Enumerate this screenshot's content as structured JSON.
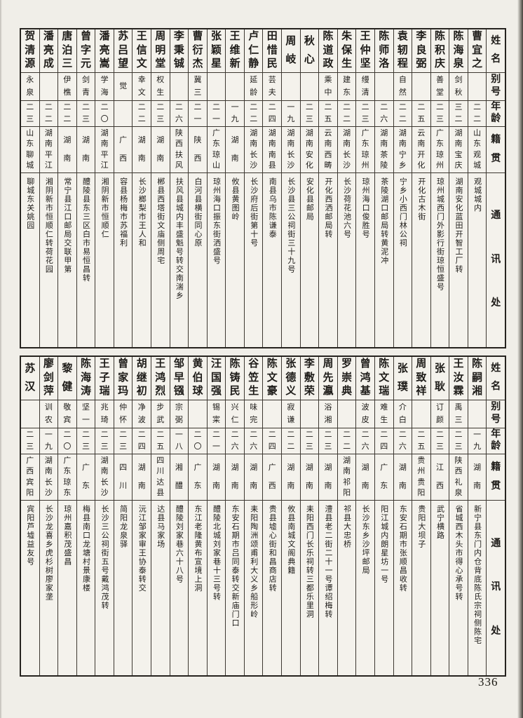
{
  "page": {
    "number": "336"
  },
  "column_headers": {
    "name": "姓名",
    "alias": "别号",
    "age": "年龄",
    "native_place": "籍贯",
    "address": "通讯处"
  },
  "tables": [
    {
      "id": "upper",
      "entries": [
        {
          "name": "曹宜之",
          "alias": "",
          "age": "二二",
          "native_place": "山东观城",
          "address": "观城城内"
        },
        {
          "name": "陈海泉",
          "alias": "剑秋",
          "age": "三二",
          "native_place": "湖南宝庆",
          "address": "湖南安化蓝田开智工厂转"
        },
        {
          "name": "陈积庆",
          "alias": "善堂",
          "age": "二三",
          "native_place": "广东琼州",
          "address": "琼州城西门外影行街琼恒盛号"
        },
        {
          "name": "李良弼",
          "alias": "",
          "age": "二五",
          "native_place": "云南开化",
          "address": "开化古木街"
        },
        {
          "name": "袁轫程",
          "alias": "自然",
          "age": "二二",
          "native_place": "湖南宁乡",
          "address": "宁乡小西门林公祠"
        },
        {
          "name": "陈师洛",
          "alias": "",
          "age": "二六",
          "native_place": "湖南茶陵",
          "address": "茶陵湖口邮局转黄泥冲"
        },
        {
          "name": "王仲坚",
          "alias": "缦清",
          "age": "二三",
          "native_place": "广东琼州",
          "address": "琼州海口俊胜号"
        },
        {
          "name": "朱保生",
          "alias": "建东",
          "age": "二二",
          "native_place": "湖南长沙",
          "address": "长沙荷花池六号"
        },
        {
          "name": "陈道政",
          "alias": "乘中",
          "age": "二五",
          "native_place": "云南西畴",
          "address": "开化西洒邮局转"
        },
        {
          "name": "秋心",
          "alias": "",
          "age": "二三",
          "native_place": "湖南安化",
          "address": "安化县邮局"
        },
        {
          "name": "周岐",
          "alias": "",
          "age": "一九",
          "native_place": "湖南长沙",
          "address": "长沙县三公祠街三十九号"
        },
        {
          "name": "田惜民",
          "alias": "芸夫",
          "age": "二四",
          "native_place": "湖南南县",
          "address": "南县乌市陈谦泰"
        },
        {
          "name": "卢仁静",
          "alias": "延龄",
          "age": "二二",
          "native_place": "湖南长沙",
          "address": "长沙府后街第十号"
        },
        {
          "name": "王维新",
          "alias": "",
          "age": "一九",
          "native_place": "湖南",
          "address": "攸县黄图岭"
        },
        {
          "name": "张颖星",
          "alias": "",
          "age": "二一",
          "native_place": "广东琼山",
          "address": "琼州海口振东街洒盛号"
        },
        {
          "name": "曹衍杰",
          "alias": "冀三",
          "age": "二一",
          "native_place": "陕西",
          "address": "白河县横街同心原"
        },
        {
          "name": "李秉铖",
          "alias": "",
          "age": "二六",
          "native_place": "陕西扶风",
          "address": "扶风县城内丰盛魁号转交南湍乡"
        },
        {
          "name": "周明堂",
          "alias": "权生",
          "age": "二三",
          "native_place": "湖南",
          "address": "郴县西塔街文庙侧周宅"
        },
        {
          "name": "王信文",
          "alias": "幸文",
          "age": "二二",
          "native_place": "湖南",
          "address": "长沙榔梨市王人和"
        },
        {
          "name": "苏吕望",
          "alias": "觉",
          "age": "",
          "native_place": "广西",
          "address": "容县杨梅市苏福利"
        },
        {
          "name": "潘亮嵩",
          "alias": "学海",
          "age": "二〇",
          "native_place": "湖南平江",
          "address": "湘阴新市恒顺仁"
        },
        {
          "name": "曾字元",
          "alias": "剑青",
          "age": "二三",
          "native_place": "湖南",
          "address": "醴陵县东三区白市易恒昌转"
        },
        {
          "name": "唐泊三",
          "alias": "伊樵",
          "age": "二二",
          "native_place": "湖南",
          "address": "常宁县江口邮局交联甲第"
        },
        {
          "name": "潘亮成",
          "alias": "",
          "age": "二二",
          "native_place": "湖南平江",
          "address": "湘阴新市恒顺仁转荷花园"
        },
        {
          "name": "贺清源",
          "alias": "永泉",
          "age": "二三",
          "native_place": "山东聊城",
          "address": "聊城东关姚园"
        }
      ]
    },
    {
      "id": "lower",
      "entries": [
        {
          "name": "陈嗣湘",
          "alias": "",
          "age": "一九",
          "native_place": "湖南",
          "address": "新宁县东门内仓背底陈氏宗祠侧陈宅"
        },
        {
          "name": "王汝霖",
          "alias": "禹三",
          "age": "二三",
          "native_place": "陕西礼泉",
          "address": "省城西木头市得心承号转"
        },
        {
          "name": "张耿",
          "alias": "订颜",
          "age": "二三",
          "native_place": "江西",
          "address": "武宁横路"
        },
        {
          "name": "周致祥",
          "alias": "",
          "age": "二五",
          "native_place": "贵州贵阳",
          "address": "贵阳大坝子"
        },
        {
          "name": "张璞",
          "alias": "介白",
          "age": "二六",
          "native_place": "湖南",
          "address": "东安石期市张顺昌收转"
        },
        {
          "name": "陈文瑞",
          "alias": "难生",
          "age": "二四",
          "native_place": "广东",
          "address": "阳江城内朗星坊一号"
        },
        {
          "name": "曾鸿基",
          "alias": "波皮",
          "age": "二六",
          "native_place": "湖南",
          "address": "长沙东乡沙坪邮局"
        },
        {
          "name": "罗崇典",
          "alias": "",
          "age": "二二",
          "native_place": "湖南祁阳",
          "address": "祁县大忠桥"
        },
        {
          "name": "周先瀛",
          "alias": "浴湘",
          "age": "二三",
          "native_place": "湖南",
          "address": "澧县老二街二十一号谭绍梅转"
        },
        {
          "name": "李敷荣",
          "alias": "",
          "age": "二三",
          "native_place": "湖南",
          "address": "耒阳西门长乐祠转三都乐里洞"
        },
        {
          "name": "张德义",
          "alias": "寂谦",
          "age": "二二",
          "native_place": "湖南",
          "address": "攸县南城文阁典籍"
        },
        {
          "name": "陈文豪",
          "alias": "",
          "age": "二四",
          "native_place": "广西",
          "address": "贵县墟心街和昌商店转"
        },
        {
          "name": "谷笠生",
          "alias": "味完",
          "age": "二六",
          "native_place": "湖南",
          "address": "耒阳陶洲颂甫利大义乡船形岭"
        },
        {
          "name": "陈铸民",
          "alias": "兴仁",
          "age": "二六",
          "native_place": "湖南",
          "address": "东安石期市吕同泰转交新庙门口"
        },
        {
          "name": "汪国强",
          "alias": "锡寀",
          "age": "二一",
          "native_place": "湖南",
          "address": "醴陵北城刘家巷十三号转"
        },
        {
          "name": "黄伯球",
          "alias": "",
          "age": "二〇",
          "native_place": "广东",
          "address": "东江老隆黄布宣境上洞"
        },
        {
          "name": "邹早镪",
          "alias": "宗弼",
          "age": "一八",
          "native_place": "湘醴",
          "address": "醴陵刘家巷六十八号"
        },
        {
          "name": "王鸿烈",
          "alias": "步武",
          "age": "二五",
          "native_place": "四川达县",
          "address": "达县马家场"
        },
        {
          "name": "胡继初",
          "alias": "净波",
          "age": "二四",
          "native_place": "湖南",
          "address": "沅江邹家审王协泰转交"
        },
        {
          "name": "曾家玛",
          "alias": "仲怀",
          "age": "二三",
          "native_place": "四川",
          "address": "简阳龙泉驿"
        },
        {
          "name": "王子瑞",
          "alias": "兆琦",
          "age": "二三",
          "native_place": "湖南长沙",
          "address": "长沙三公祠街五号戴鸿茂转"
        },
        {
          "name": "陈海涛",
          "alias": "坚一",
          "age": "二三",
          "native_place": "广东",
          "address": "梅县南口龙塘村景康楼"
        },
        {
          "name": "黎健",
          "alias": "敬宾",
          "age": "二〇",
          "native_place": "广东琼东",
          "address": "琼州嘉积茂盛昌"
        },
        {
          "name": "廖剑萍",
          "alias": "训农",
          "age": "一九",
          "native_place": "湖南长沙",
          "address": "长沙龙喜乡虎杉树廖家垄"
        },
        {
          "name": "苏汉",
          "alias": "",
          "age": "二三",
          "native_place": "广西宾阳",
          "address": "宾阳芦墟益友号"
        }
      ]
    }
  ]
}
